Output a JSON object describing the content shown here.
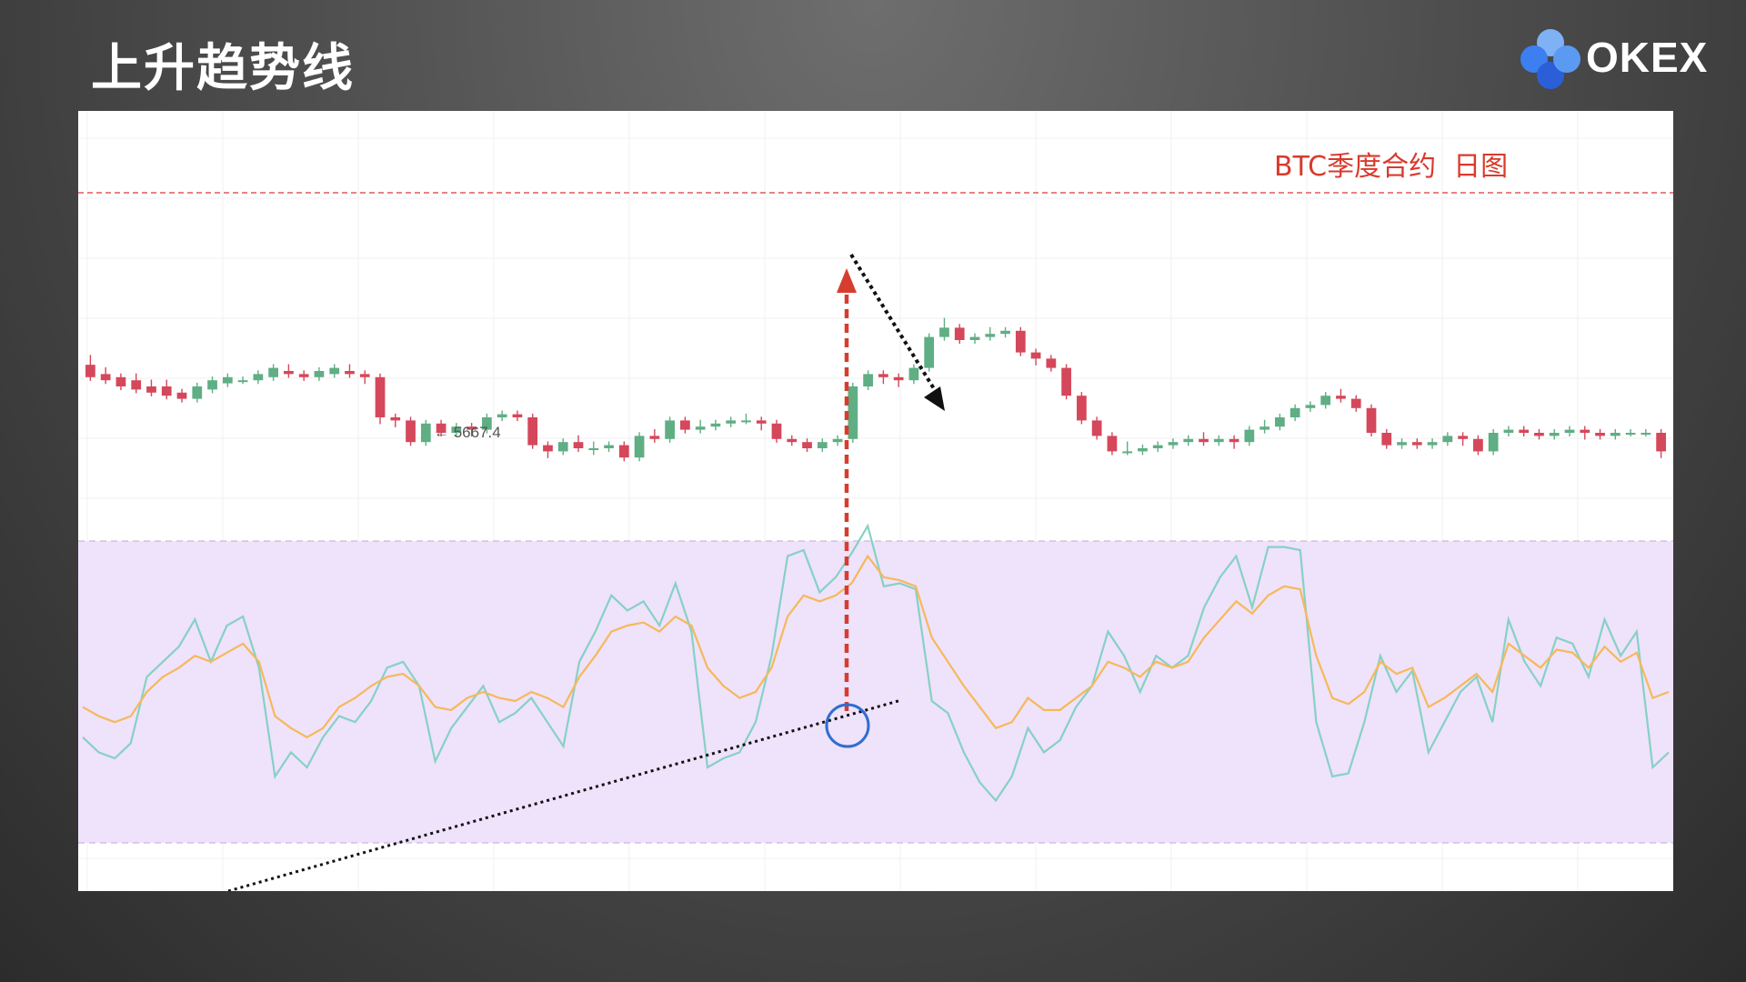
{
  "slide": {
    "title": "上升趋势线"
  },
  "brand": {
    "logo_text": "OKEX",
    "logo_colors": [
      "#7fb2f5",
      "#3d7ef0",
      "#2a5fd8",
      "#5b9af3"
    ]
  },
  "chart_data": {
    "type": "candlestick-with-indicator",
    "title": "BTC季度合约  日图",
    "min_marker": "← 5667.4",
    "colors": {
      "up": "#5fae84",
      "down": "#d5475a",
      "resistance_line": "#e05a5a",
      "indicator_band": "#efe2fb",
      "fast_line": "#86d1c4",
      "slow_line": "#f5b95a",
      "annotation_red": "#d63d2f",
      "annotation_black": "#111111",
      "circle": "#2f6ed0"
    },
    "candles": [
      [
        0.62,
        0.64,
        0.6,
        0.58
      ],
      [
        0.59,
        0.6,
        0.59,
        0.57
      ],
      [
        0.58,
        0.58,
        0.57,
        0.55
      ],
      [
        0.57,
        0.58,
        0.56,
        0.54
      ],
      [
        0.55,
        0.56,
        0.55,
        0.53
      ],
      [
        0.55,
        0.56,
        0.54,
        0.52
      ],
      [
        0.53,
        0.53,
        0.52,
        0.51
      ],
      [
        0.51,
        0.54,
        0.56,
        0.55
      ],
      [
        0.54,
        0.55,
        0.56,
        0.57
      ],
      [
        0.56,
        0.56,
        0.57,
        0.58
      ],
      [
        0.57,
        0.57,
        0.58,
        0.57
      ],
      [
        0.57,
        0.57,
        0.58,
        0.59
      ],
      [
        0.58,
        0.59,
        0.6,
        0.61
      ],
      [
        0.6,
        0.61,
        0.6,
        0.59
      ],
      [
        0.59,
        0.58,
        0.58,
        0.58
      ],
      [
        0.58,
        0.58,
        0.59,
        0.6
      ],
      [
        0.59,
        0.59,
        0.6,
        0.61
      ],
      [
        0.6,
        0.61,
        0.6,
        0.59
      ],
      [
        0.59,
        0.58,
        0.57,
        0.58
      ],
      [
        0.58,
        0.49,
        0.44,
        0.45
      ],
      [
        0.45,
        0.44,
        0.43,
        0.44
      ],
      [
        0.44,
        0.4,
        0.38,
        0.37
      ],
      [
        0.37,
        0.38,
        0.41,
        0.43
      ],
      [
        0.43,
        0.41,
        0.4,
        0.4
      ],
      [
        0.4,
        0.42,
        0.41,
        0.42
      ],
      [
        0.42,
        0.4,
        0.4,
        0.41
      ],
      [
        0.41,
        0.44,
        0.46,
        0.45
      ],
      [
        0.45,
        0.44,
        0.45,
        0.46
      ],
      [
        0.46,
        0.46,
        0.45,
        0.45
      ],
      [
        0.45,
        0.44,
        0.4,
        0.36
      ],
      [
        0.36,
        0.35,
        0.33,
        0.34
      ],
      [
        0.34,
        0.36,
        0.38,
        0.37
      ],
      [
        0.37,
        0.38,
        0.37,
        0.35
      ],
      [
        0.35,
        0.36,
        0.34,
        0.35
      ],
      [
        0.35,
        0.36,
        0.35,
        0.36
      ],
      [
        0.36,
        0.34,
        0.33,
        0.32
      ],
      [
        0.32,
        0.36,
        0.38,
        0.39
      ],
      [
        0.39,
        0.4,
        0.39,
        0.38
      ],
      [
        0.38,
        0.42,
        0.43,
        0.44
      ],
      [
        0.44,
        0.43,
        0.42,
        0.41
      ],
      [
        0.41,
        0.43,
        0.42,
        0.42
      ],
      [
        0.42,
        0.43,
        0.44,
        0.43
      ],
      [
        0.43,
        0.42,
        0.43,
        0.44
      ],
      [
        0.44,
        0.45,
        0.46,
        0.44
      ],
      [
        0.44,
        0.43,
        0.42,
        0.43
      ],
      [
        0.43,
        0.38,
        0.39,
        0.38
      ],
      [
        0.38,
        0.37,
        0.38,
        0.37
      ],
      [
        0.37,
        0.36,
        0.35,
        0.35
      ],
      [
        0.35,
        0.36,
        0.37,
        0.37
      ],
      [
        0.37,
        0.38,
        0.38,
        0.38
      ],
      [
        0.38,
        0.45,
        0.5,
        0.55
      ],
      [
        0.55,
        0.58,
        0.59,
        0.59
      ],
      [
        0.59,
        0.58,
        0.57,
        0.58
      ],
      [
        0.58,
        0.57,
        0.56,
        0.57
      ],
      [
        0.57,
        0.58,
        0.6,
        0.61
      ],
      [
        0.61,
        0.7,
        0.72,
        0.71
      ],
      [
        0.71,
        0.76,
        0.75,
        0.74
      ],
      [
        0.74,
        0.72,
        0.71,
        0.7
      ],
      [
        0.7,
        0.71,
        0.72,
        0.71
      ],
      [
        0.71,
        0.73,
        0.72,
        0.72
      ],
      [
        0.72,
        0.73,
        0.74,
        0.73
      ],
      [
        0.73,
        0.72,
        0.69,
        0.66
      ],
      [
        0.66,
        0.65,
        0.63,
        0.64
      ],
      [
        0.64,
        0.63,
        0.62,
        0.61
      ],
      [
        0.61,
        0.57,
        0.54,
        0.52
      ],
      [
        0.52,
        0.48,
        0.45,
        0.44
      ],
      [
        0.44,
        0.42,
        0.4,
        0.39
      ],
      [
        0.39,
        0.38,
        0.36,
        0.34
      ],
      [
        0.34,
        0.36,
        0.35,
        0.34
      ],
      [
        0.34,
        0.35,
        0.36,
        0.35
      ],
      [
        0.35,
        0.36,
        0.37,
        0.36
      ],
      [
        0.36,
        0.35,
        0.36,
        0.37
      ],
      [
        0.37,
        0.38,
        0.39,
        0.38
      ],
      [
        0.38,
        0.39,
        0.38,
        0.37
      ],
      [
        0.37,
        0.36,
        0.37,
        0.38
      ],
      [
        0.38,
        0.37,
        0.36,
        0.37
      ],
      [
        0.37,
        0.39,
        0.4,
        0.41
      ],
      [
        0.41,
        0.43,
        0.42,
        0.42
      ],
      [
        0.42,
        0.43,
        0.44,
        0.45
      ],
      [
        0.45,
        0.48,
        0.49,
        0.48
      ],
      [
        0.48,
        0.47,
        0.48,
        0.49
      ],
      [
        0.49,
        0.5,
        0.51,
        0.52
      ],
      [
        0.52,
        0.53,
        0.52,
        0.51
      ],
      [
        0.51,
        0.5,
        0.49,
        0.48
      ],
      [
        0.48,
        0.43,
        0.41,
        0.4
      ],
      [
        0.4,
        0.38,
        0.37,
        0.36
      ],
      [
        0.36,
        0.35,
        0.36,
        0.37
      ],
      [
        0.37,
        0.36,
        0.37,
        0.36
      ],
      [
        0.36,
        0.37,
        0.38,
        0.37
      ],
      [
        0.37,
        0.38,
        0.39,
        0.39
      ],
      [
        0.39,
        0.38,
        0.37,
        0.38
      ],
      [
        0.38,
        0.36,
        0.35,
        0.34
      ],
      [
        0.34,
        0.36,
        0.38,
        0.4
      ],
      [
        0.4,
        0.41,
        0.42,
        0.41
      ],
      [
        0.41,
        0.4,
        0.41,
        0.4
      ],
      [
        0.4,
        0.39,
        0.4,
        0.39
      ],
      [
        0.39,
        0.4,
        0.41,
        0.4
      ],
      [
        0.4,
        0.41,
        0.4,
        0.41
      ],
      [
        0.41,
        0.4,
        0.39,
        0.4
      ],
      [
        0.4,
        0.39,
        0.4,
        0.39
      ],
      [
        0.39,
        0.4,
        0.39,
        0.4
      ],
      [
        0.4,
        0.39,
        0.4,
        0.4
      ],
      [
        0.4,
        0.4,
        0.41,
        0.4
      ],
      [
        0.4,
        0.34,
        0.33,
        0.34
      ]
    ],
    "indicator_fast": [
      0.35,
      0.3,
      0.28,
      0.33,
      0.55,
      0.6,
      0.65,
      0.74,
      0.6,
      0.72,
      0.75,
      0.58,
      0.22,
      0.3,
      0.25,
      0.35,
      0.42,
      0.4,
      0.47,
      0.58,
      0.6,
      0.52,
      0.27,
      0.38,
      0.45,
      0.52,
      0.4,
      0.43,
      0.48,
      0.4,
      0.32,
      0.6,
      0.7,
      0.82,
      0.77,
      0.8,
      0.72,
      0.86,
      0.7,
      0.25,
      0.28,
      0.3,
      0.4,
      0.62,
      0.95,
      0.97,
      0.83,
      0.88,
      0.96,
      1.05,
      0.85,
      0.86,
      0.84,
      0.47,
      0.43,
      0.3,
      0.2,
      0.14,
      0.22,
      0.38,
      0.3,
      0.34,
      0.45,
      0.52,
      0.7,
      0.62,
      0.5,
      0.62,
      0.58,
      0.62,
      0.78,
      0.88,
      0.95,
      0.78,
      0.98,
      0.98,
      0.97,
      0.4,
      0.22,
      0.23,
      0.4,
      0.62,
      0.5,
      0.57,
      0.3,
      0.4,
      0.5,
      0.55,
      0.4,
      0.74,
      0.6,
      0.52,
      0.68,
      0.66,
      0.55,
      0.74,
      0.62,
      0.7,
      0.25,
      0.3
    ],
    "indicator_slow": [
      0.45,
      0.42,
      0.4,
      0.42,
      0.5,
      0.55,
      0.58,
      0.62,
      0.6,
      0.63,
      0.66,
      0.6,
      0.42,
      0.38,
      0.35,
      0.38,
      0.45,
      0.48,
      0.52,
      0.55,
      0.56,
      0.52,
      0.45,
      0.44,
      0.48,
      0.5,
      0.48,
      0.47,
      0.5,
      0.48,
      0.45,
      0.55,
      0.62,
      0.7,
      0.72,
      0.73,
      0.7,
      0.75,
      0.72,
      0.58,
      0.52,
      0.48,
      0.5,
      0.58,
      0.75,
      0.82,
      0.8,
      0.82,
      0.86,
      0.95,
      0.88,
      0.87,
      0.85,
      0.68,
      0.6,
      0.52,
      0.45,
      0.38,
      0.4,
      0.48,
      0.44,
      0.44,
      0.48,
      0.52,
      0.6,
      0.58,
      0.55,
      0.6,
      0.58,
      0.6,
      0.68,
      0.74,
      0.8,
      0.76,
      0.82,
      0.85,
      0.84,
      0.62,
      0.48,
      0.46,
      0.5,
      0.6,
      0.56,
      0.58,
      0.45,
      0.48,
      0.52,
      0.56,
      0.5,
      0.66,
      0.62,
      0.58,
      0.64,
      0.63,
      0.58,
      0.65,
      0.6,
      0.63,
      0.48,
      0.5
    ]
  }
}
